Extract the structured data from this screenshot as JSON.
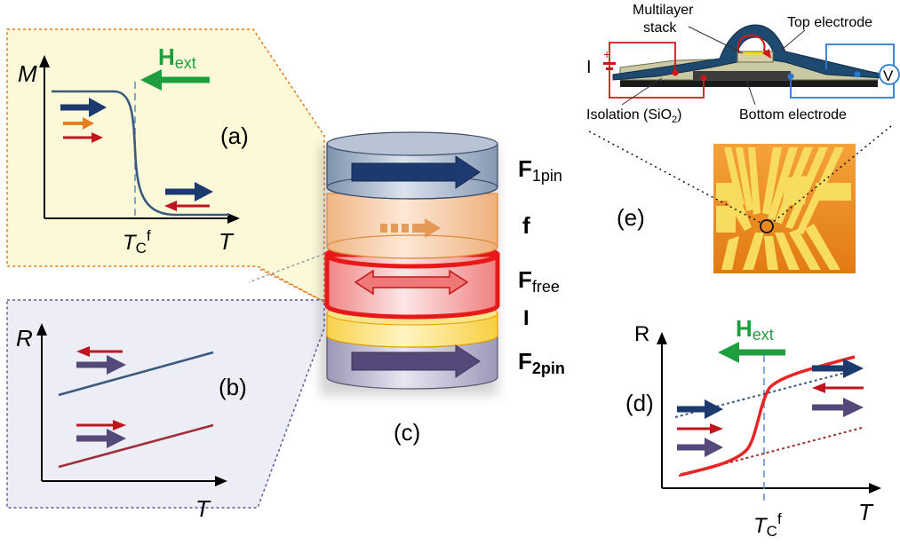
{
  "panels": {
    "a": {
      "label": "(a)",
      "y_axis": "M",
      "x_axis": "T",
      "tc_main": "T",
      "tc_sub": "C",
      "tc_sup": "f",
      "field_main": "H",
      "field_sub": "ext"
    },
    "b": {
      "label": "(b)",
      "y_axis": "R",
      "x_axis": "T"
    },
    "c": {
      "label": "(c)",
      "layers": {
        "f1pin_main": "F",
        "f1pin_sub": "1pin",
        "f": "f",
        "ffree_main": "F",
        "ffree_sub": "free",
        "i": "I",
        "f2pin_main": "F",
        "f2pin_sub": "2pin"
      }
    },
    "d": {
      "label": "(d)",
      "y_axis": "R",
      "x_axis": "T",
      "tc_main": "T",
      "tc_sub": "C",
      "tc_sup": "f",
      "field_main": "H",
      "field_sub": "ext"
    },
    "e": {
      "label": "(e)",
      "multilayer_line1": "Multilayer",
      "multilayer_line2": "stack",
      "top_electrode": "Top electrode",
      "bottom_electrode": "Bottom electrode",
      "isolation_main": "Isolation (SiO",
      "isolation_sub": "2",
      "isolation_end": ")",
      "current": "I",
      "plus": "+",
      "minus": "-",
      "voltmeter": "V"
    }
  },
  "colors": {
    "panel_a_bg": "#fbf9d8",
    "panel_a_border": "#e07b1f",
    "panel_b_bg": "#ededf5",
    "panel_b_border": "#5a5a9a",
    "navy": "#1c3a70",
    "red": "#c0141e",
    "purple": "#55497a",
    "orange": "#e67e22",
    "green": "#1f9e3e",
    "curve": "#3a5a80",
    "d_curve": "#e82424"
  }
}
